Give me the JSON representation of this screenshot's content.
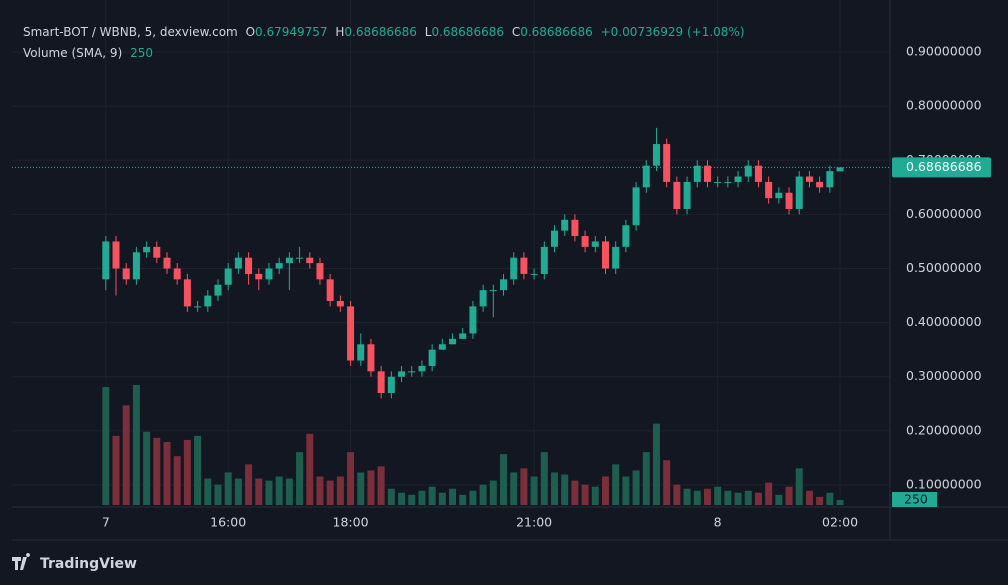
{
  "chart_data": {
    "type": "candlestick",
    "symbol": "Smart-BOT / WBNB, 5, dexview.com",
    "ohlc_labels": [
      "O",
      "H",
      "L",
      "C"
    ],
    "change": "+0.00736929 (+1.08%)",
    "volume_label": "Volume (SMA, 9)",
    "brand": "TradingView",
    "up_color": "#22ab94",
    "down_color": "#f7525f",
    "volume_up_color": "#1e5e4e",
    "volume_down_color": "#7a2f3b",
    "grid": true,
    "ylim": [
      0.0593,
      0.974
    ],
    "yticks": [
      {
        "value": 0.1,
        "label": "0.10000000"
      },
      {
        "value": 0.2,
        "label": "0.20000000"
      },
      {
        "value": 0.3,
        "label": "0.30000000"
      },
      {
        "value": 0.4,
        "label": "0.40000000"
      },
      {
        "value": 0.5,
        "label": "0.50000000"
      },
      {
        "value": 0.6,
        "label": "0.60000000"
      },
      {
        "value": 0.7,
        "label": "0.70000000"
      },
      {
        "value": 0.8,
        "label": "0.80000000"
      },
      {
        "value": 0.9,
        "label": "0.90000000"
      }
    ],
    "xlim": [
      -9.2,
      76.9
    ],
    "xticks": [
      {
        "value": 0,
        "label": "7"
      },
      {
        "value": 12,
        "label": "16:00"
      },
      {
        "value": 24,
        "label": "18:00"
      },
      {
        "value": 42,
        "label": "21:00"
      },
      {
        "value": 60,
        "label": "8"
      },
      {
        "value": 72,
        "label": "02:00"
      }
    ],
    "open": [
      0.48,
      0.55,
      0.5,
      0.48,
      0.53,
      0.54,
      0.52,
      0.5,
      0.48,
      0.43,
      0.43,
      0.45,
      0.47,
      0.5,
      0.52,
      0.49,
      0.48,
      0.5,
      0.51,
      0.52,
      0.52,
      0.51,
      0.48,
      0.44,
      0.43,
      0.33,
      0.36,
      0.31,
      0.27,
      0.3,
      0.31,
      0.31,
      0.32,
      0.35,
      0.36,
      0.37,
      0.38,
      0.43,
      0.46,
      0.46,
      0.48,
      0.52,
      0.49,
      0.49,
      0.54,
      0.57,
      0.59,
      0.56,
      0.54,
      0.55,
      0.5,
      0.54,
      0.58,
      0.65,
      0.69,
      0.73,
      0.66,
      0.61,
      0.66,
      0.69,
      0.66,
      0.66,
      0.66,
      0.67,
      0.69,
      0.66,
      0.63,
      0.64,
      0.61,
      0.67,
      0.66,
      0.65,
      0.67949757
    ],
    "high": [
      0.56,
      0.56,
      0.51,
      0.54,
      0.55,
      0.55,
      0.53,
      0.51,
      0.49,
      0.44,
      0.46,
      0.48,
      0.51,
      0.53,
      0.53,
      0.5,
      0.51,
      0.52,
      0.53,
      0.54,
      0.53,
      0.52,
      0.49,
      0.45,
      0.44,
      0.38,
      0.37,
      0.32,
      0.31,
      0.32,
      0.32,
      0.33,
      0.36,
      0.37,
      0.38,
      0.39,
      0.44,
      0.47,
      0.47,
      0.49,
      0.53,
      0.53,
      0.5,
      0.55,
      0.58,
      0.6,
      0.6,
      0.57,
      0.56,
      0.56,
      0.55,
      0.59,
      0.66,
      0.7,
      0.76,
      0.74,
      0.67,
      0.67,
      0.7,
      0.7,
      0.67,
      0.67,
      0.68,
      0.7,
      0.7,
      0.67,
      0.65,
      0.65,
      0.68,
      0.68,
      0.67,
      0.69,
      0.68686686
    ],
    "low": [
      0.46,
      0.45,
      0.47,
      0.47,
      0.52,
      0.51,
      0.49,
      0.47,
      0.42,
      0.42,
      0.42,
      0.44,
      0.46,
      0.49,
      0.47,
      0.46,
      0.47,
      0.49,
      0.46,
      0.51,
      0.5,
      0.47,
      0.43,
      0.42,
      0.32,
      0.32,
      0.3,
      0.26,
      0.26,
      0.29,
      0.3,
      0.3,
      0.31,
      0.35,
      0.36,
      0.37,
      0.37,
      0.42,
      0.41,
      0.45,
      0.47,
      0.48,
      0.48,
      0.48,
      0.53,
      0.56,
      0.55,
      0.53,
      0.53,
      0.49,
      0.49,
      0.53,
      0.57,
      0.64,
      0.68,
      0.65,
      0.6,
      0.6,
      0.65,
      0.65,
      0.65,
      0.65,
      0.65,
      0.66,
      0.65,
      0.62,
      0.62,
      0.6,
      0.6,
      0.65,
      0.64,
      0.64,
      0.68686686
    ],
    "close": [
      0.55,
      0.5,
      0.48,
      0.53,
      0.54,
      0.52,
      0.5,
      0.48,
      0.43,
      0.43,
      0.45,
      0.47,
      0.5,
      0.52,
      0.49,
      0.48,
      0.5,
      0.51,
      0.52,
      0.52,
      0.51,
      0.48,
      0.44,
      0.43,
      0.33,
      0.36,
      0.31,
      0.27,
      0.3,
      0.31,
      0.31,
      0.32,
      0.35,
      0.36,
      0.37,
      0.38,
      0.43,
      0.46,
      0.46,
      0.48,
      0.52,
      0.49,
      0.49,
      0.54,
      0.57,
      0.59,
      0.56,
      0.54,
      0.55,
      0.5,
      0.54,
      0.58,
      0.65,
      0.69,
      0.73,
      0.66,
      0.61,
      0.66,
      0.69,
      0.66,
      0.66,
      0.66,
      0.67,
      0.69,
      0.66,
      0.63,
      0.64,
      0.61,
      0.67,
      0.66,
      0.65,
      0.68,
      0.68686686
    ],
    "volume": [
      5800,
      3400,
      4900,
      5900,
      3600,
      3300,
      3100,
      2400,
      3200,
      3400,
      1300,
      1000,
      1600,
      1300,
      2000,
      1300,
      1200,
      1400,
      1300,
      2600,
      3500,
      1400,
      1200,
      1400,
      2600,
      1600,
      1700,
      1900,
      800,
      600,
      500,
      700,
      900,
      600,
      800,
      500,
      700,
      1000,
      1200,
      2500,
      1600,
      1800,
      1400,
      2600,
      1600,
      1500,
      1200,
      1000,
      900,
      1400,
      2000,
      1400,
      1700,
      2600,
      4000,
      2200,
      1000,
      800,
      700,
      800,
      900,
      700,
      600,
      700,
      600,
      1100,
      500,
      900,
      1800,
      700,
      400,
      600,
      250
    ]
  }
}
